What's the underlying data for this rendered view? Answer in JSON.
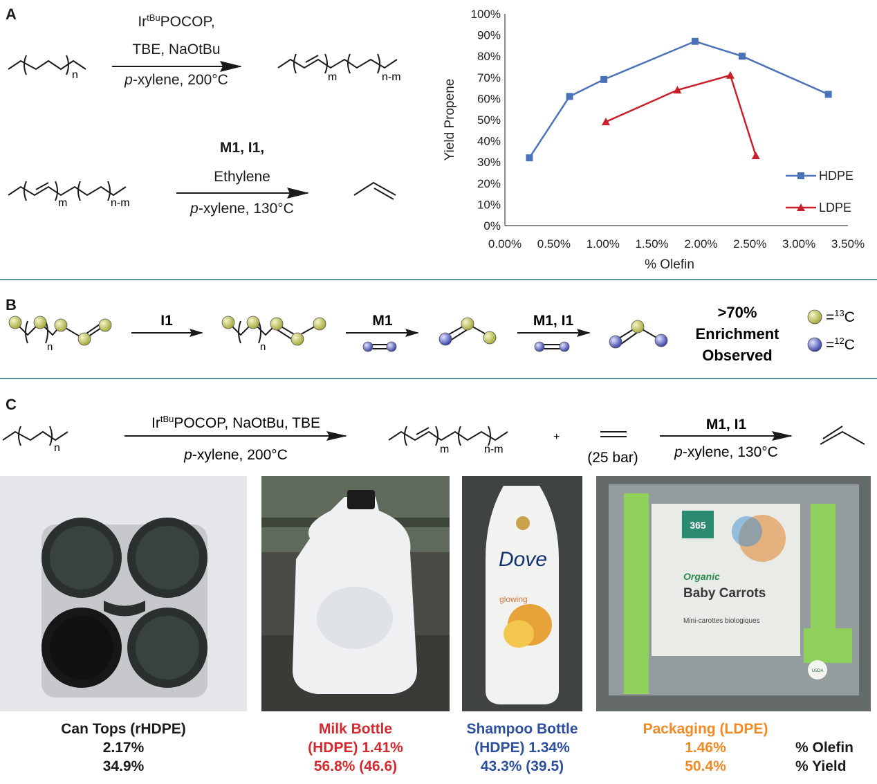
{
  "panels": {
    "a": "A",
    "b": "B",
    "c": "C"
  },
  "panel_a": {
    "rxn1": {
      "catalyst": "Ir",
      "catalyst_sup": "tBu",
      "catalyst_rest": "POCOP,",
      "reagents": "TBE, NaOtBu",
      "solvent_prefix": "p",
      "solvent_rest": "-xylene, 200°C",
      "sub_n": "n",
      "sub_m": "m",
      "sub_nm": "n-m"
    },
    "rxn2": {
      "catalyst": "M1, I1,",
      "reagent": "Ethylene",
      "solvent_prefix": "p",
      "solvent_rest": "-xylene, 130°C",
      "sub_m": "m",
      "sub_nm": "n-m"
    }
  },
  "chart_data": {
    "type": "line",
    "xlabel": "% Olefin",
    "ylabel": "Yield Propene",
    "xlim": [
      0,
      3.5
    ],
    "ylim": [
      0,
      100
    ],
    "x_ticks": [
      "0.00%",
      "0.50%",
      "1.00%",
      "1.50%",
      "2.00%",
      "2.50%",
      "3.00%",
      "3.50%"
    ],
    "y_ticks": [
      "0%",
      "10%",
      "20%",
      "30%",
      "40%",
      "50%",
      "60%",
      "70%",
      "80%",
      "90%",
      "100%"
    ],
    "legend_position": "bottom-right",
    "series": [
      {
        "name": "HDPE",
        "color": "#4a72b8",
        "marker": "square",
        "points": [
          [
            0.25,
            32
          ],
          [
            0.66,
            61
          ],
          [
            1.01,
            69
          ],
          [
            1.94,
            87
          ],
          [
            2.42,
            80
          ],
          [
            3.3,
            62
          ]
        ]
      },
      {
        "name": "LDPE",
        "color": "#c8202a",
        "marker": "triangle",
        "points": [
          [
            1.03,
            49
          ],
          [
            1.76,
            64
          ],
          [
            2.3,
            71
          ],
          [
            2.56,
            33
          ]
        ]
      }
    ]
  },
  "panel_b": {
    "step1": "I1",
    "step2": "M1",
    "step3": "M1, I1",
    "sub_n": "n",
    "enrichment_line1": ">70%",
    "enrichment_line2": "Enrichment",
    "enrichment_line3": "Observed",
    "legend_13c_prefix": "=",
    "legend_13c_sup": "13",
    "legend_13c_el": "C",
    "legend_12c_prefix": "=",
    "legend_12c_sup": "12",
    "legend_12c_el": "C",
    "colors": {
      "c13": "#c7cc6a",
      "c12": "#6f78c8"
    }
  },
  "panel_c": {
    "rxn1_top_prefix": "Ir",
    "rxn1_top_sup": "tBu",
    "rxn1_top_rest": "POCOP, NaOtBu, TBE",
    "rxn1_bottom_prefix": "p",
    "rxn1_bottom_rest": "-xylene, 200°C",
    "sub_n": "n",
    "sub_m": "m",
    "sub_nm": "n-m",
    "plus": "+",
    "ethylene_pressure": "(25 bar)",
    "rxn2_top": "M1, I1",
    "rxn2_bottom_prefix": "p",
    "rxn2_bottom_rest": "-xylene, 130°C"
  },
  "photos": {
    "milk_bottle_text": "",
    "dove": "Dove",
    "dove_sub": "glowing",
    "package_brand": "365",
    "package_organic": "Organic",
    "package_title": "Baby Carrots",
    "package_sub": "Mini-carottes biologiques",
    "package_usda": "USDA"
  },
  "samples": [
    {
      "title": "Can Tops (rHDPE)",
      "line2": "2.17%",
      "line3": "34.9%",
      "color": "#1a1a1a"
    },
    {
      "title": "Milk Bottle",
      "line2": "(HDPE) 1.41%",
      "line3": "56.8% (46.6)",
      "color": "#d42a2f"
    },
    {
      "title": "Shampoo Bottle",
      "line2": "(HDPE) 1.34%",
      "line3": "43.3% (39.5)",
      "color": "#2d4f9e"
    },
    {
      "title": "Packaging (LDPE)",
      "line2": "1.46%",
      "line3": "50.4%",
      "color": "#f08a24"
    }
  ],
  "row_labels": {
    "olefin": "% Olefin",
    "yield": "% Yield"
  }
}
